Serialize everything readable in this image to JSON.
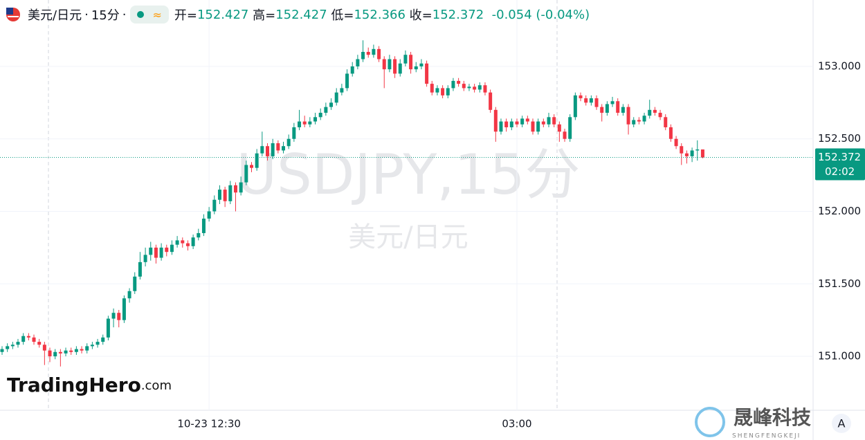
{
  "chart_data": {
    "type": "candlestick",
    "header": {
      "symbol": "美元/日元",
      "interval": "15分",
      "open_label": "开=",
      "open": "152.427",
      "high_label": "高=",
      "high": "152.427",
      "low_label": "低=",
      "low": "152.366",
      "close_label": "收=",
      "close": "152.372",
      "change": "-0.054 (-0.04%)"
    },
    "watermark": {
      "ticker": "USDJPY,15分",
      "name": "美元/日元"
    },
    "brand": {
      "logo_main": "TradingHero",
      "logo_suffix": ".com",
      "company": "晟峰科技",
      "company_latin": "SHENGFENGKEJI",
      "button": "A"
    },
    "up_color": "#089981",
    "down_color": "#f23645",
    "ylim": [
      150.628,
      153.458
    ],
    "yticks": [
      {
        "value": 151,
        "label": "151.000"
      },
      {
        "value": 151.5,
        "label": "151.500"
      },
      {
        "value": 152,
        "label": "152.000"
      },
      {
        "value": 152.5,
        "label": "152.500"
      },
      {
        "value": 153,
        "label": "153.000"
      }
    ],
    "last_price": {
      "value": 152.372,
      "label": "152.372"
    },
    "countdown": "02:02",
    "xticks": [
      {
        "index": 39,
        "label": "10-23 12:30"
      },
      {
        "index": 97,
        "label": "03:00"
      }
    ],
    "candles": [
      [
        151.03,
        151.07,
        151.01,
        151.05
      ],
      [
        151.05,
        151.09,
        151.03,
        151.07
      ],
      [
        151.07,
        151.1,
        151.05,
        151.08
      ],
      [
        151.08,
        151.12,
        151.06,
        151.1
      ],
      [
        151.1,
        151.16,
        151.08,
        151.14
      ],
      [
        151.14,
        151.16,
        151.11,
        151.13
      ],
      [
        151.13,
        151.15,
        151.08,
        151.1
      ],
      [
        151.1,
        151.12,
        151.06,
        151.08
      ],
      [
        151.08,
        151.1,
        150.94,
        151.04
      ],
      [
        151.04,
        151.06,
        150.96,
        151.0
      ],
      [
        151.0,
        151.05,
        150.98,
        151.03
      ],
      [
        151.03,
        151.05,
        150.93,
        151.02
      ],
      [
        151.02,
        151.06,
        151.0,
        151.04
      ],
      [
        151.04,
        151.06,
        151.01,
        151.03
      ],
      [
        151.03,
        151.07,
        151.01,
        151.05
      ],
      [
        151.05,
        151.07,
        151.02,
        151.04
      ],
      [
        151.04,
        151.09,
        151.02,
        151.07
      ],
      [
        151.07,
        151.1,
        151.05,
        151.08
      ],
      [
        151.08,
        151.12,
        151.06,
        151.1
      ],
      [
        151.1,
        151.15,
        151.08,
        151.13
      ],
      [
        151.13,
        151.28,
        151.11,
        151.26
      ],
      [
        151.26,
        151.33,
        151.2,
        151.3
      ],
      [
        151.3,
        151.32,
        151.2,
        151.25
      ],
      [
        151.25,
        151.42,
        151.23,
        151.4
      ],
      [
        151.4,
        151.47,
        151.37,
        151.45
      ],
      [
        151.45,
        151.58,
        151.43,
        151.55
      ],
      [
        151.55,
        151.72,
        151.53,
        151.65
      ],
      [
        151.65,
        151.75,
        151.62,
        151.7
      ],
      [
        151.7,
        151.79,
        151.66,
        151.75
      ],
      [
        151.75,
        151.77,
        151.64,
        151.68
      ],
      [
        151.68,
        151.78,
        151.66,
        151.75
      ],
      [
        151.75,
        151.77,
        151.69,
        151.72
      ],
      [
        151.72,
        151.8,
        151.7,
        151.77
      ],
      [
        151.77,
        151.83,
        151.75,
        151.8
      ],
      [
        151.8,
        151.82,
        151.75,
        151.78
      ],
      [
        151.78,
        151.8,
        151.73,
        151.76
      ],
      [
        151.76,
        151.84,
        151.74,
        151.82
      ],
      [
        151.82,
        151.88,
        151.8,
        151.85
      ],
      [
        151.85,
        151.98,
        151.83,
        151.95
      ],
      [
        151.95,
        152.03,
        151.93,
        152.0
      ],
      [
        152.0,
        152.11,
        151.98,
        152.08
      ],
      [
        152.08,
        152.18,
        152.05,
        152.15
      ],
      [
        152.15,
        152.17,
        152.03,
        152.07
      ],
      [
        152.07,
        152.21,
        152.05,
        152.18
      ],
      [
        152.18,
        152.2,
        152.0,
        152.13
      ],
      [
        152.13,
        152.24,
        152.11,
        152.2
      ],
      [
        152.2,
        152.35,
        152.18,
        152.32
      ],
      [
        152.32,
        152.34,
        152.27,
        152.3
      ],
      [
        152.3,
        152.43,
        152.28,
        152.4
      ],
      [
        152.4,
        152.55,
        152.38,
        152.45
      ],
      [
        152.45,
        152.47,
        152.35,
        152.38
      ],
      [
        152.38,
        152.5,
        152.36,
        152.47
      ],
      [
        152.47,
        152.49,
        152.4,
        152.42
      ],
      [
        152.42,
        152.48,
        152.4,
        152.45
      ],
      [
        152.45,
        152.53,
        152.43,
        152.5
      ],
      [
        152.5,
        152.61,
        152.48,
        152.58
      ],
      [
        152.58,
        152.7,
        152.56,
        152.62
      ],
      [
        152.62,
        152.66,
        152.58,
        152.6
      ],
      [
        152.6,
        152.65,
        152.58,
        152.62
      ],
      [
        152.62,
        152.68,
        152.6,
        152.65
      ],
      [
        152.65,
        152.71,
        152.63,
        152.68
      ],
      [
        152.68,
        152.75,
        152.66,
        152.72
      ],
      [
        152.72,
        152.78,
        152.7,
        152.75
      ],
      [
        152.75,
        152.85,
        152.73,
        152.82
      ],
      [
        152.82,
        152.88,
        152.8,
        152.85
      ],
      [
        152.85,
        152.98,
        152.83,
        152.95
      ],
      [
        152.95,
        153.03,
        152.93,
        153.0
      ],
      [
        153.0,
        153.08,
        152.98,
        153.05
      ],
      [
        153.05,
        153.18,
        153.03,
        153.1
      ],
      [
        153.1,
        153.13,
        153.06,
        153.08
      ],
      [
        153.08,
        153.15,
        153.06,
        153.12
      ],
      [
        153.12,
        153.14,
        153.03,
        153.05
      ],
      [
        153.05,
        153.07,
        152.85,
        152.98
      ],
      [
        152.98,
        153.08,
        152.96,
        153.05
      ],
      [
        153.05,
        153.07,
        152.92,
        152.95
      ],
      [
        152.95,
        153.05,
        152.93,
        153.02
      ],
      [
        153.02,
        153.11,
        153.0,
        153.08
      ],
      [
        153.08,
        153.1,
        152.95,
        152.98
      ],
      [
        152.98,
        153.03,
        152.96,
        153.0
      ],
      [
        153.0,
        153.05,
        152.98,
        153.02
      ],
      [
        153.02,
        153.04,
        152.86,
        152.88
      ],
      [
        152.88,
        152.9,
        152.8,
        152.82
      ],
      [
        152.82,
        152.87,
        152.8,
        152.85
      ],
      [
        152.85,
        152.87,
        152.78,
        152.8
      ],
      [
        152.8,
        152.87,
        152.78,
        152.85
      ],
      [
        152.85,
        152.92,
        152.83,
        152.9
      ],
      [
        152.9,
        152.92,
        152.86,
        152.88
      ],
      [
        152.88,
        152.9,
        152.83,
        152.85
      ],
      [
        152.85,
        152.88,
        152.83,
        152.86
      ],
      [
        152.86,
        152.88,
        152.82,
        152.84
      ],
      [
        152.84,
        152.89,
        152.82,
        152.87
      ],
      [
        152.87,
        152.89,
        152.8,
        152.82
      ],
      [
        152.82,
        152.84,
        152.68,
        152.7
      ],
      [
        152.7,
        152.72,
        152.48,
        152.55
      ],
      [
        152.55,
        152.64,
        152.53,
        152.62
      ],
      [
        152.62,
        152.64,
        152.55,
        152.58
      ],
      [
        152.58,
        152.64,
        152.56,
        152.62
      ],
      [
        152.62,
        152.64,
        152.58,
        152.6
      ],
      [
        152.6,
        152.66,
        152.58,
        152.64
      ],
      [
        152.64,
        152.66,
        152.6,
        152.62
      ],
      [
        152.62,
        152.64,
        152.53,
        152.55
      ],
      [
        152.55,
        152.64,
        152.53,
        152.62
      ],
      [
        152.62,
        152.64,
        152.58,
        152.6
      ],
      [
        152.6,
        152.68,
        152.58,
        152.65
      ],
      [
        152.65,
        152.67,
        152.58,
        152.6
      ],
      [
        152.6,
        152.62,
        152.48,
        152.55
      ],
      [
        152.55,
        152.57,
        152.48,
        152.5
      ],
      [
        152.5,
        152.67,
        152.48,
        152.65
      ],
      [
        152.65,
        152.82,
        152.63,
        152.8
      ],
      [
        152.8,
        152.82,
        152.76,
        152.78
      ],
      [
        152.78,
        152.8,
        152.73,
        152.75
      ],
      [
        152.75,
        152.8,
        152.73,
        152.78
      ],
      [
        152.78,
        152.8,
        152.7,
        152.72
      ],
      [
        152.72,
        152.74,
        152.62,
        152.68
      ],
      [
        152.68,
        152.76,
        152.66,
        152.74
      ],
      [
        152.74,
        152.79,
        152.72,
        152.76
      ],
      [
        152.76,
        152.78,
        152.66,
        152.68
      ],
      [
        152.68,
        152.74,
        152.66,
        152.72
      ],
      [
        152.72,
        152.74,
        152.53,
        152.6
      ],
      [
        152.6,
        152.65,
        152.58,
        152.63
      ],
      [
        152.63,
        152.65,
        152.6,
        152.62
      ],
      [
        152.62,
        152.68,
        152.6,
        152.66
      ],
      [
        152.66,
        152.77,
        152.64,
        152.7
      ],
      [
        152.7,
        152.72,
        152.66,
        152.68
      ],
      [
        152.68,
        152.7,
        152.63,
        152.65
      ],
      [
        152.65,
        152.67,
        152.56,
        152.58
      ],
      [
        152.58,
        152.6,
        152.48,
        152.5
      ],
      [
        152.5,
        152.52,
        152.43,
        152.45
      ],
      [
        152.45,
        152.47,
        152.32,
        152.4
      ],
      [
        152.4,
        152.42,
        152.33,
        152.38
      ],
      [
        152.38,
        152.44,
        152.34,
        152.42
      ],
      [
        152.42,
        152.49,
        152.35,
        152.427
      ],
      [
        152.427,
        152.427,
        152.366,
        152.372
      ]
    ]
  }
}
